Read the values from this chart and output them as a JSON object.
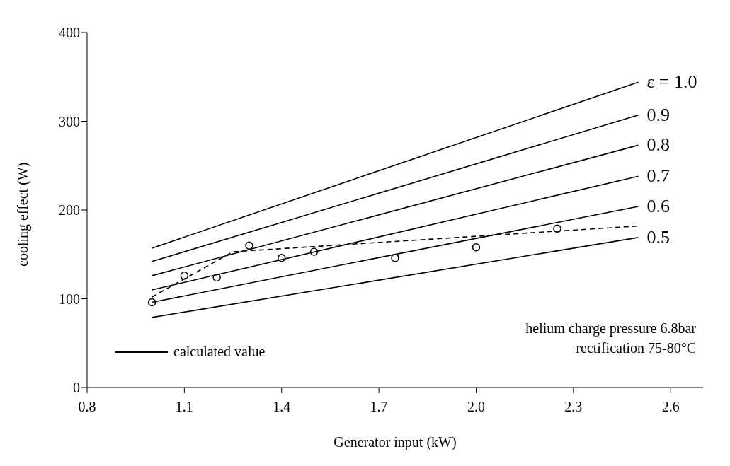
{
  "chart_data": {
    "type": "line",
    "xlabel": "Generator input (kW)",
    "ylabel": "cooling effect (W)",
    "xlim": [
      0.8,
      2.7
    ],
    "xticks": [
      0.8,
      1.1,
      1.4,
      1.7,
      {
        "value": 2,
        "label": "2.0"
      },
      2.3,
      2.6
    ],
    "ylim": [
      0,
      400
    ],
    "yticks": [
      0,
      100,
      200,
      300,
      400
    ],
    "grid": false,
    "marker": "none",
    "line_style": "solid",
    "series": [
      {
        "name": "ε = 1.0",
        "color": "#000000",
        "x": [
          1.0,
          2.5
        ],
        "values": [
          157,
          344
        ]
      },
      {
        "name": "0.9",
        "color": "#000000",
        "x": [
          1.0,
          2.5
        ],
        "values": [
          142,
          307
        ]
      },
      {
        "name": "0.8",
        "color": "#000000",
        "x": [
          1.0,
          2.5
        ],
        "values": [
          126,
          273
        ]
      },
      {
        "name": "0.7",
        "color": "#000000",
        "x": [
          1.0,
          2.5
        ],
        "values": [
          110,
          238
        ]
      },
      {
        "name": "0.6",
        "color": "#000000",
        "x": [
          1.0,
          2.5
        ],
        "values": [
          96,
          204
        ]
      },
      {
        "name": "0.5",
        "color": "#000000",
        "x": [
          1.0,
          2.5
        ],
        "values": [
          79,
          169
        ]
      },
      {
        "type": "line",
        "color": "#000000",
        "line_style": "dashed",
        "x": [
          1.0,
          1.25,
          2.5
        ],
        "values": [
          102,
          153,
          182
        ]
      },
      {
        "type": "scatter",
        "color": "#000000",
        "marker": "circle",
        "x": [
          1.0,
          1.1,
          1.2,
          1.3,
          1.4,
          1.5,
          1.75,
          2.0,
          2.25
        ],
        "values": [
          96,
          126,
          124,
          160,
          146,
          153,
          146,
          158,
          179
        ]
      }
    ],
    "annotations": [
      "calculated value",
      "helium charge pressure 6.8bar",
      "rectification 75-80°C"
    ]
  }
}
